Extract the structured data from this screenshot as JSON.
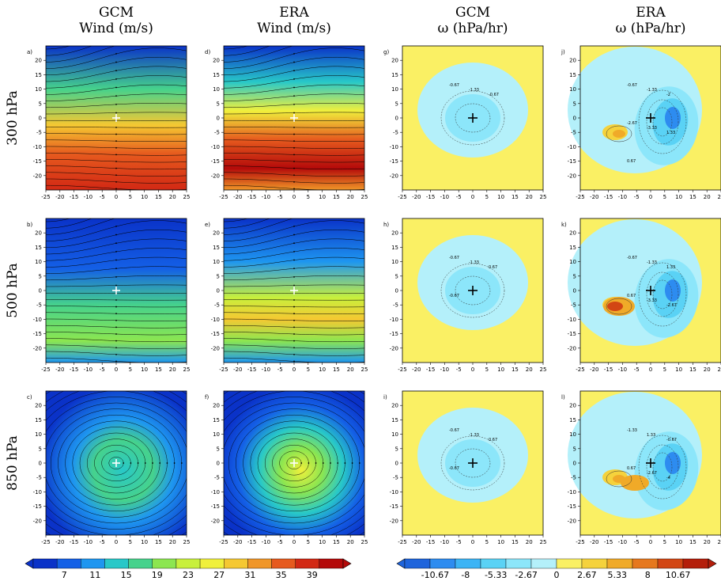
{
  "columns": [
    {
      "title": "GCM",
      "subtitle": "Wind (m/s)"
    },
    {
      "title": "ERA",
      "subtitle": "Wind (m/s)"
    },
    {
      "title": "GCM",
      "subtitle": "ω (hPa/hr)"
    },
    {
      "title": "ERA",
      "subtitle": "ω (hPa/hr)"
    }
  ],
  "rows": [
    "300 hPa",
    "500 hPa",
    "850 hPa"
  ],
  "panel_letters": [
    [
      "a)",
      "d)",
      "g)",
      "j)"
    ],
    [
      "b)",
      "e)",
      "h)",
      "k)"
    ],
    [
      "c)",
      "f)",
      "i)",
      "l)"
    ]
  ],
  "colors": {
    "wind": [
      "#0a32c8",
      "#1460e6",
      "#1e96f0",
      "#28c8c8",
      "#46d28c",
      "#8ce650",
      "#c8f03c",
      "#f0f03c",
      "#f5c832",
      "#f09628",
      "#e65a1e",
      "#d22814",
      "#b40a0a"
    ],
    "omega": [
      "#1e64dc",
      "#2d8cf0",
      "#3cb4f5",
      "#5ad2f5",
      "#8ce6fa",
      "#b4f0fa",
      "#faf064",
      "#f5d23c",
      "#f0aa28",
      "#e6781e",
      "#d24614",
      "#b41e0a"
    ]
  },
  "chart_data": {
    "type": "heatmap",
    "description_axes": {
      "xticks": [
        -25,
        -20,
        -15,
        -10,
        -5,
        0,
        5,
        10,
        15,
        20,
        25
      ],
      "yticks": [
        20,
        15,
        10,
        5,
        0,
        -5,
        -10,
        -15,
        -20
      ],
      "xlim": [
        -25,
        25
      ],
      "ylim": [
        -25,
        25
      ]
    },
    "wind_colorbar": {
      "labels": [
        "7",
        "11",
        "15",
        "19",
        "23",
        "27",
        "31",
        "35",
        "39"
      ],
      "boundaries": [
        5,
        7,
        9,
        11,
        13,
        15,
        17,
        19,
        21,
        23,
        25,
        27,
        29,
        31,
        33,
        35,
        37,
        39,
        41
      ]
    },
    "omega_colorbar": {
      "labels": [
        "-10.67",
        "-8",
        "-5.33",
        "-2.67",
        "0",
        "2.67",
        "5.33",
        "8",
        "10.67"
      ]
    },
    "contour_labels": {
      "gcm_300": [
        "-0.67",
        "-1.33",
        "-0.67"
      ],
      "era_300": [
        "-0.67",
        "-1.33",
        "-2",
        "-2.67",
        "-3.33",
        "1.33",
        "0.67"
      ],
      "gcm_500": [
        "-0.67",
        "-1.33",
        "0.67",
        "-0.67"
      ],
      "era_500": [
        "-0.67",
        "-1.33",
        "1.33",
        "0.67",
        "-3.33",
        "-2.67"
      ],
      "gcm_850": [
        "-0.67",
        "-1.33",
        "0.67",
        "-0.67"
      ],
      "era_850": [
        "-1.33",
        "1.33",
        "-0.67",
        "0.67",
        "-2.67",
        "-4"
      ]
    },
    "center_marker": [
      0,
      0
    ]
  }
}
